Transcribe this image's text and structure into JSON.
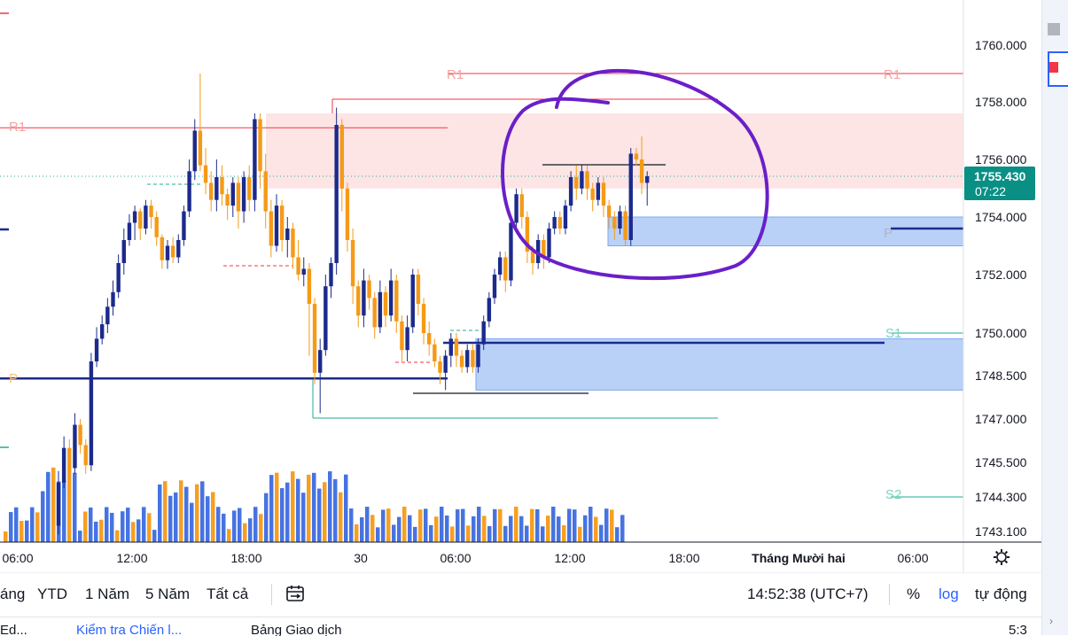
{
  "chart_data": {
    "type": "candlestick",
    "price_axis": {
      "ticks": [
        "1760.000",
        "1758.000",
        "1756.000",
        "1755.430",
        "1754.000",
        "1752.000",
        "1750.000",
        "1748.500",
        "1747.000",
        "1745.500",
        "1744.300",
        "1743.100"
      ],
      "current_price": "1755.430",
      "countdown": "07:22"
    },
    "time_axis": {
      "ticks": [
        "06:00",
        "12:00",
        "18:00",
        "30",
        "06:00",
        "12:00",
        "18:00",
        "Tháng Mười hai",
        "06:00"
      ]
    },
    "pivot_labels": {
      "r1": "R1",
      "p": "P",
      "s1": "S1",
      "s2": "S2"
    },
    "pivot_levels": {
      "r1_current": 1759.0,
      "r1_prev": 1757.1,
      "p_current": 1753.6,
      "p_prev": 1748.4,
      "s1_current": 1750.0,
      "s2_current": 1744.3
    },
    "zones": [
      {
        "kind": "supply",
        "from": 1755.0,
        "to": 1757.6,
        "color": "#fde5e5"
      },
      {
        "kind": "demand",
        "from": 1753.0,
        "to": 1754.0,
        "color": "#b9d1f7"
      },
      {
        "kind": "demand",
        "from": 1748.0,
        "to": 1749.8,
        "color": "#b9d1f7"
      }
    ],
    "colors": {
      "up": "#1c2a8c",
      "down": "#f59a17",
      "r_line": "#f23645",
      "p_line": "#1c2a8c",
      "s_line": "#22ab94",
      "annotation": "#6a1fc9"
    }
  },
  "bottom_bar": {
    "ranges": [
      "áng",
      "YTD",
      "1 Năm",
      "5 Năm",
      "Tất cả"
    ],
    "clock": "14:52:38 (UTC+7)",
    "percent": "%",
    "log": "log",
    "auto": "tự động"
  },
  "footer_tabs": [
    "Ed...",
    "Kiểm tra Chiến l...",
    "Bảng Giao dịch",
    "5:3"
  ]
}
